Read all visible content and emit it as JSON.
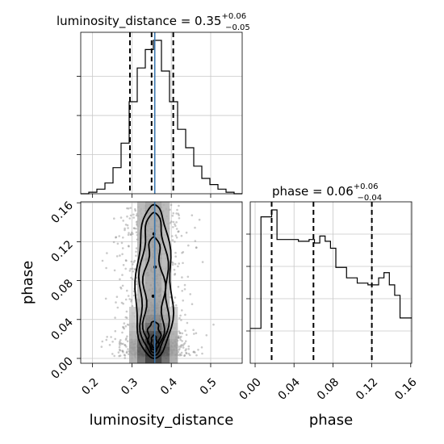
{
  "chart_data": {
    "type": "corner",
    "truth_color": "#3b78b0",
    "params": [
      {
        "name": "luminosity_distance",
        "label": "luminosity_distance",
        "title_prefix": "luminosity_distance = 0.35",
        "title_plus": "+0.06",
        "title_minus": "−0.05",
        "range": [
          0.17,
          0.58
        ],
        "ticks": [
          0.2,
          0.3,
          0.4,
          0.5
        ],
        "tick_labels": [
          "0.2",
          "0.3",
          "0.4",
          "0.5"
        ],
        "quantiles": [
          0.295,
          0.35,
          0.405
        ],
        "truth": 0.358,
        "hist": {
          "edges": [
            0.17,
            0.1905,
            0.211,
            0.2315,
            0.252,
            0.2725,
            0.293,
            0.3135,
            0.334,
            0.3545,
            0.375,
            0.3955,
            0.416,
            0.4365,
            0.457,
            0.4775,
            0.498,
            0.5185,
            0.539,
            0.5595,
            0.58
          ],
          "counts": [
            0.0,
            0.01,
            0.03,
            0.07,
            0.17,
            0.33,
            0.6,
            0.82,
            0.94,
            1.0,
            0.8,
            0.6,
            0.42,
            0.3,
            0.18,
            0.1,
            0.06,
            0.03,
            0.01,
            0.0
          ]
        }
      },
      {
        "name": "phase",
        "label": "phase",
        "title_prefix": "phase = 0.06",
        "title_plus": "+0.06",
        "title_minus": "−0.04",
        "range": [
          -0.005,
          0.161
        ],
        "ticks": [
          0.0,
          0.04,
          0.08,
          0.12,
          0.16
        ],
        "tick_labels": [
          "0.00",
          "0.04",
          "0.08",
          "0.12",
          "0.16"
        ],
        "quantiles": [
          0.017,
          0.06,
          0.12
        ],
        "hist": {
          "edges": [
            -0.005,
            0.0005,
            0.006,
            0.0115,
            0.017,
            0.0225,
            0.028,
            0.0335,
            0.039,
            0.0445,
            0.05,
            0.0555,
            0.061,
            0.0665,
            0.072,
            0.0775,
            0.083,
            0.0885,
            0.094,
            0.0995,
            0.105,
            0.1105,
            0.116,
            0.1215,
            0.127,
            0.1325,
            0.138,
            0.1435,
            0.149,
            0.1545,
            0.161
          ],
          "counts": [
            0.2,
            0.2,
            0.84,
            0.84,
            0.88,
            0.71,
            0.71,
            0.71,
            0.71,
            0.7,
            0.7,
            0.71,
            0.69,
            0.73,
            0.7,
            0.66,
            0.55,
            0.55,
            0.49,
            0.49,
            0.46,
            0.46,
            0.45,
            0.45,
            0.49,
            0.52,
            0.45,
            0.39,
            0.26,
            0.26
          ]
        }
      }
    ],
    "density_levels": [
      0.12,
      0.25,
      0.4,
      0.55,
      0.7,
      0.8,
      0.9
    ]
  }
}
